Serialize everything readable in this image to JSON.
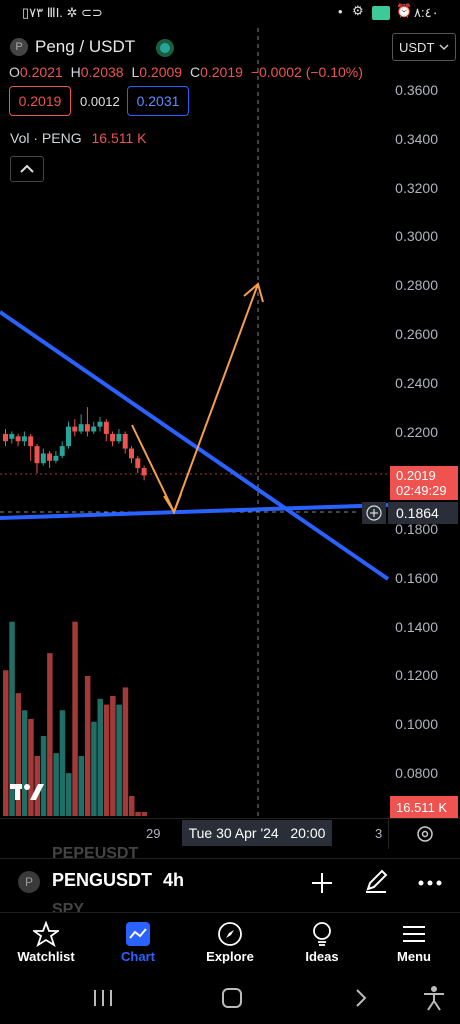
{
  "status_bar": {
    "left_text": "▯٧٣ ⅢI. ✲ ⊂⊃",
    "time": "٨:٤٠"
  },
  "header": {
    "symbol_title": "Peng / USDT",
    "ohlc": {
      "o_label": "O",
      "o_value": "0.2021",
      "h_label": "H",
      "h_value": "0.2038",
      "l_label": "L",
      "l_value": "0.2009",
      "c_label": "C",
      "c_value": "0.2019",
      "change": "−0.0002 (−0.10%)"
    },
    "bid": "0.2019",
    "spread": "0.0012",
    "ask": "0.2031",
    "vol_label": "Vol · PENG",
    "vol_value": "16.511 K",
    "currency_select": "USDT"
  },
  "chart_data": {
    "type": "candlestick",
    "y_ticks": [
      "0.3600",
      "0.3400",
      "0.3200",
      "0.3000",
      "0.2800",
      "0.2600",
      "0.2400",
      "0.2200",
      "0.1800",
      "0.1600",
      "0.1400",
      "0.1200",
      "0.1000",
      "0.0800"
    ],
    "ylim": [
      0.06,
      0.37
    ],
    "last_price": "0.2019",
    "countdown": "02:49:29",
    "crosshair_price": "0.1864",
    "volume_label": "16.511 K",
    "x_ticks": [
      "29",
      "3"
    ],
    "crosshair_time": "Tue 30 Apr '24   20:00",
    "colors": {
      "up": "#26a69a",
      "down": "#ef5350",
      "trendline": "#2962ff",
      "arrow": "#f59e4c"
    }
  },
  "toolbar": {
    "ghost_top": "PEPEUSDT",
    "symbol": "PENGUSDT",
    "timeframe": "4h",
    "ghost_bottom": "SPY"
  },
  "nav": [
    {
      "label": "Watchlist",
      "icon": "star-icon"
    },
    {
      "label": "Chart",
      "icon": "chart-icon"
    },
    {
      "label": "Explore",
      "icon": "compass-icon"
    },
    {
      "label": "Ideas",
      "icon": "lightbulb-icon"
    },
    {
      "label": "Menu",
      "icon": "hamburger-icon"
    }
  ]
}
